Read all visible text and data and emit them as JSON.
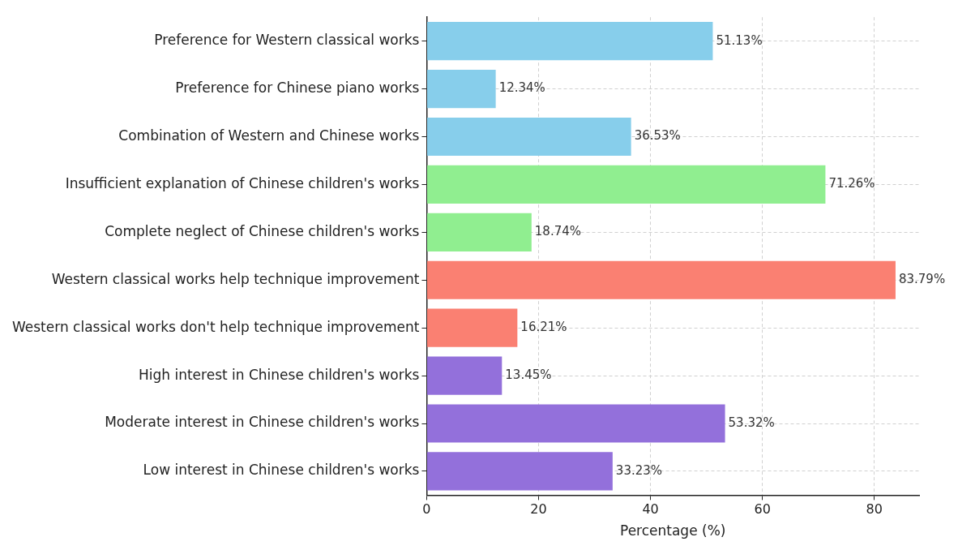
{
  "chart_data": {
    "type": "bar",
    "orientation": "horizontal",
    "xlabel": "Percentage (%)",
    "categories": [
      "Preference for Western classical works",
      "Preference for Chinese piano works",
      "Combination of Western and Chinese works",
      "Insufficient explanation of Chinese children's works",
      "Complete neglect of Chinese children's works",
      "Western classical works help technique improvement",
      "Western classical works don't help technique improvement",
      "High interest in Chinese children's works",
      "Moderate interest in Chinese children's works",
      "Low interest in Chinese children's works"
    ],
    "values": [
      51.13,
      12.34,
      36.53,
      71.26,
      18.74,
      83.79,
      16.21,
      13.45,
      53.32,
      33.23
    ],
    "value_labels": [
      "51.13%",
      "12.34%",
      "36.53%",
      "71.26%",
      "18.74%",
      "83.79%",
      "16.21%",
      "13.45%",
      "53.32%",
      "33.23%"
    ],
    "colors": [
      "#87ceeb",
      "#87ceeb",
      "#87ceeb",
      "#90ee90",
      "#90ee90",
      "#fa8072",
      "#fa8072",
      "#9370db",
      "#9370db",
      "#9370db"
    ],
    "xlim": [
      0,
      88
    ],
    "xticks": [
      0,
      20,
      40,
      60,
      80
    ],
    "grid": true
  }
}
